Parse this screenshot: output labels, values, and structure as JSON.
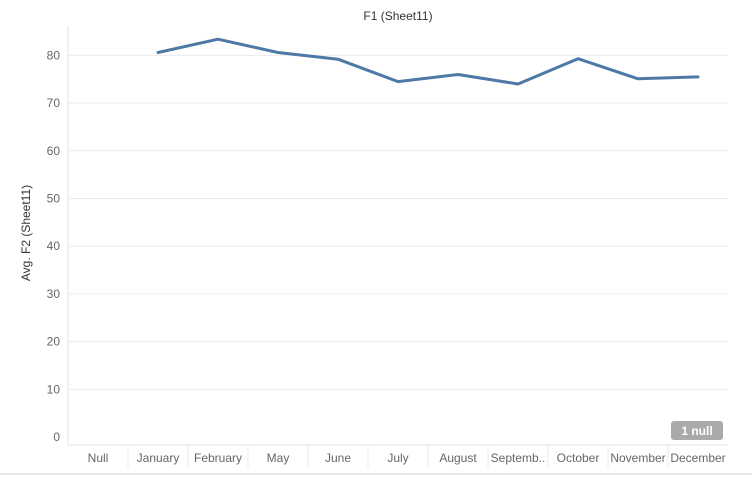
{
  "chart_data": {
    "type": "line",
    "title": "F1 (Sheet11)",
    "xlabel": "",
    "ylabel": "Avg. F2 (Sheet11)",
    "categories": [
      "Null",
      "January",
      "February",
      "May",
      "June",
      "July",
      "August",
      "Septemb..",
      "October",
      "November",
      "December"
    ],
    "series": [
      {
        "color": "#4e79a7",
        "values": [
          null,
          80.6,
          83.4,
          80.6,
          79.2,
          74.5,
          76.0,
          74.0,
          79.3,
          75.1,
          75.5
        ]
      }
    ],
    "ylim": [
      0,
      88
    ],
    "yticks": [
      0,
      10,
      20,
      30,
      40,
      50,
      60,
      70,
      80
    ],
    "grid": true,
    "null_indicator": "1 null"
  }
}
